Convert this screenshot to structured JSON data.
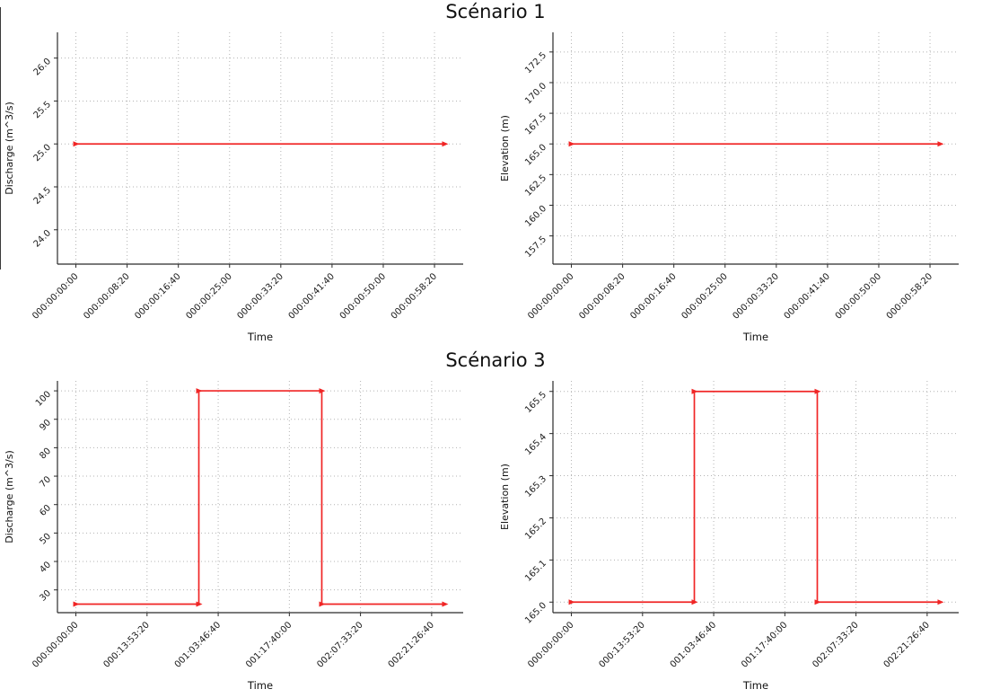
{
  "figures": [
    {
      "suptitle": "Scénario 1"
    },
    {
      "suptitle": "Scénario 3"
    }
  ],
  "style": {
    "line_color": "#f02525",
    "grid_color": "#b3b3b3",
    "spine_color": "#2b2b2b",
    "tick_label_color": "#1a1a1a"
  },
  "chart_data": [
    {
      "id": "scenario1-discharge",
      "type": "line",
      "title": "",
      "xlabel": "Time",
      "ylabel": "Discharge (m^3/s)",
      "grid": "dotted",
      "legend": "none",
      "xlim": [
        -180,
        3780
      ],
      "ylim": [
        23.6,
        26.3
      ],
      "x_ticks": [
        {
          "v": 0,
          "label": "000:00:00:00"
        },
        {
          "v": 500,
          "label": "000:00:08:20"
        },
        {
          "v": 1000,
          "label": "000:00:16:40"
        },
        {
          "v": 1500,
          "label": "000:00:25:00"
        },
        {
          "v": 2000,
          "label": "000:00:33:20"
        },
        {
          "v": 2500,
          "label": "000:00:41:40"
        },
        {
          "v": 3000,
          "label": "000:00:50:00"
        },
        {
          "v": 3500,
          "label": "000:00:58:20"
        }
      ],
      "y_ticks": [
        {
          "v": 24.0,
          "label": "24.0"
        },
        {
          "v": 24.5,
          "label": "24.5"
        },
        {
          "v": 25.0,
          "label": "25.0"
        },
        {
          "v": 25.5,
          "label": "25.5"
        },
        {
          "v": 26.0,
          "label": "26.0"
        }
      ],
      "series": [
        {
          "name": "Discharge",
          "x": [
            0,
            3600
          ],
          "y": [
            25.0,
            25.0
          ]
        }
      ]
    },
    {
      "id": "scenario1-elevation",
      "type": "line",
      "title": "",
      "xlabel": "Time",
      "ylabel": "Elevation (m)",
      "grid": "dotted",
      "legend": "none",
      "xlim": [
        -180,
        3780
      ],
      "ylim": [
        155.2,
        174.1
      ],
      "x_ticks": [
        {
          "v": 0,
          "label": "000:00:00:00"
        },
        {
          "v": 500,
          "label": "000:00:08:20"
        },
        {
          "v": 1000,
          "label": "000:00:16:40"
        },
        {
          "v": 1500,
          "label": "000:00:25:00"
        },
        {
          "v": 2000,
          "label": "000:00:33:20"
        },
        {
          "v": 2500,
          "label": "000:00:41:40"
        },
        {
          "v": 3000,
          "label": "000:00:50:00"
        },
        {
          "v": 3500,
          "label": "000:00:58:20"
        }
      ],
      "y_ticks": [
        {
          "v": 157.5,
          "label": "157.5"
        },
        {
          "v": 160.0,
          "label": "160.0"
        },
        {
          "v": 162.5,
          "label": "162.5"
        },
        {
          "v": 165.0,
          "label": "165.0"
        },
        {
          "v": 167.5,
          "label": "167.5"
        },
        {
          "v": 170.0,
          "label": "170.0"
        },
        {
          "v": 172.5,
          "label": "172.5"
        }
      ],
      "series": [
        {
          "name": "Elevation",
          "x": [
            0,
            3600
          ],
          "y": [
            165.0,
            165.0
          ]
        }
      ]
    },
    {
      "id": "scenario3-discharge",
      "type": "line",
      "title": "",
      "xlabel": "Time",
      "ylabel": "Discharge (m^3/s)",
      "grid": "dotted",
      "legend": "none",
      "xlim": [
        -12960,
        272160
      ],
      "ylim": [
        22,
        103.5
      ],
      "x_ticks": [
        {
          "v": 0,
          "label": "000:00:00:00"
        },
        {
          "v": 50000,
          "label": "000:13:53:20"
        },
        {
          "v": 100000,
          "label": "001:03:46:40"
        },
        {
          "v": 150000,
          "label": "001:17:40:00"
        },
        {
          "v": 200000,
          "label": "002:07:33:20"
        },
        {
          "v": 250000,
          "label": "002:21:26:40"
        }
      ],
      "y_ticks": [
        {
          "v": 30,
          "label": "30"
        },
        {
          "v": 40,
          "label": "40"
        },
        {
          "v": 50,
          "label": "50"
        },
        {
          "v": 60,
          "label": "60"
        },
        {
          "v": 70,
          "label": "70"
        },
        {
          "v": 80,
          "label": "80"
        },
        {
          "v": 90,
          "label": "90"
        },
        {
          "v": 100,
          "label": "100"
        }
      ],
      "series": [
        {
          "name": "Discharge",
          "x": [
            0,
            86400,
            86400,
            172800,
            172800,
            259200
          ],
          "y": [
            25,
            25,
            100,
            100,
            25,
            25
          ]
        }
      ]
    },
    {
      "id": "scenario3-elevation",
      "type": "line",
      "title": "",
      "xlabel": "Time",
      "ylabel": "Elevation (m)",
      "grid": "dotted",
      "legend": "none",
      "xlim": [
        -12960,
        272160
      ],
      "ylim": [
        164.975,
        165.525
      ],
      "x_ticks": [
        {
          "v": 0,
          "label": "000:00:00:00"
        },
        {
          "v": 50000,
          "label": "000:13:53:20"
        },
        {
          "v": 100000,
          "label": "001:03:46:40"
        },
        {
          "v": 150000,
          "label": "001:17:40:00"
        },
        {
          "v": 200000,
          "label": "002:07:33:20"
        },
        {
          "v": 250000,
          "label": "002:21:26:40"
        }
      ],
      "y_ticks": [
        {
          "v": 165.0,
          "label": "165.0"
        },
        {
          "v": 165.1,
          "label": "165.1"
        },
        {
          "v": 165.2,
          "label": "165.2"
        },
        {
          "v": 165.3,
          "label": "165.3"
        },
        {
          "v": 165.4,
          "label": "165.4"
        },
        {
          "v": 165.5,
          "label": "165.5"
        }
      ],
      "series": [
        {
          "name": "Elevation",
          "x": [
            0,
            86400,
            86400,
            172800,
            172800,
            259200
          ],
          "y": [
            165.0,
            165.0,
            165.5,
            165.5,
            165.0,
            165.0
          ]
        }
      ]
    }
  ]
}
